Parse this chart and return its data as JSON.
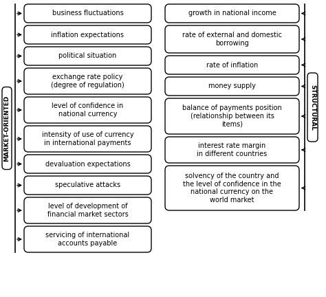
{
  "left_boxes": [
    "business fluctuations",
    "inflation expectations",
    "political situation",
    "exchange rate policy\n(degree of regulation)",
    "level of confidence in\nnational currency",
    "intensity of use of currency\nin international payments",
    "devaluation expectations",
    "speculative attacks",
    "level of development of\nfinancial market sectors",
    "servicing of international\naccounts payable"
  ],
  "right_boxes": [
    "growth in national income",
    "rate of external and domestic\nborrowing",
    "rate of inflation",
    "money supply",
    "balance of payments position\n(relationship between its\nitems)",
    "interest rate margin\nin different countries",
    "solvency of the country and\nthe level of confidence in the\nnational currency on the\nworld market"
  ],
  "left_label": "MARKET-ORIENTED",
  "right_label": "STRUCTURAL",
  "bg_color": "#ffffff",
  "box_facecolor": "#ffffff",
  "box_edgecolor": "#000000",
  "text_color": "#000000",
  "fontsize": 7.0
}
